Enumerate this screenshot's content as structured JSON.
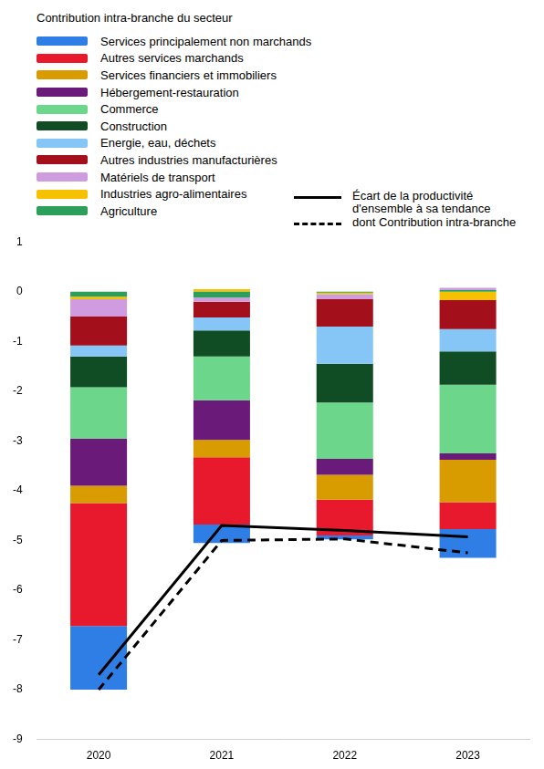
{
  "chart_data": {
    "type": "bar",
    "legend_title": "Contribution intra-branche du secteur",
    "categories": [
      "2020",
      "2021",
      "2022",
      "2023"
    ],
    "stacked": true,
    "grid": false,
    "legend": "top-left",
    "ylim": [
      -9,
      1
    ],
    "yticks": [
      -9,
      -8,
      -7,
      -6,
      -5,
      -4,
      -3,
      -2,
      -1,
      0,
      1
    ],
    "series": [
      {
        "name": "Agriculture",
        "type": "bar",
        "color": "#2ca05a",
        "values": [
          -0.1,
          -0.12,
          -0.02,
          0.03
        ]
      },
      {
        "name": "Industries agro-alimentaires",
        "type": "bar",
        "color": "#f6c200",
        "values": [
          -0.05,
          0.05,
          -0.03,
          -0.17
        ]
      },
      {
        "name": "Matériels de transport",
        "type": "bar",
        "color": "#cf9ddf",
        "values": [
          -0.35,
          -0.08,
          -0.1,
          0.05
        ]
      },
      {
        "name": "Autres industries manufacturières",
        "type": "bar",
        "color": "#a3101c",
        "values": [
          -0.58,
          -0.32,
          -0.55,
          -0.58
        ]
      },
      {
        "name": "Energie, eau, déchets",
        "type": "bar",
        "color": "#86c6f7",
        "values": [
          -0.22,
          -0.26,
          -0.75,
          -0.45
        ]
      },
      {
        "name": "Construction",
        "type": "bar",
        "color": "#114d24",
        "values": [
          -0.62,
          -0.52,
          -0.78,
          -0.67
        ]
      },
      {
        "name": "Commerce",
        "type": "bar",
        "color": "#6cd68a",
        "values": [
          -1.03,
          -0.88,
          -1.13,
          -1.38
        ]
      },
      {
        "name": "Hébergement-restauration",
        "type": "bar",
        "color": "#6a1b7a",
        "values": [
          -0.95,
          -0.8,
          -0.32,
          -0.13
        ]
      },
      {
        "name": "Services financiers et immobiliers",
        "type": "bar",
        "color": "#d89b00",
        "values": [
          -0.35,
          -0.35,
          -0.5,
          -0.85
        ]
      },
      {
        "name": "Autres services marchands",
        "type": "bar",
        "color": "#e8192c",
        "values": [
          -2.47,
          -1.35,
          -0.72,
          -0.54
        ]
      },
      {
        "name": "Services principalement non marchands",
        "type": "bar",
        "color": "#2e7ee6",
        "values": [
          -1.28,
          -0.37,
          -0.08,
          -0.58
        ]
      },
      {
        "name": "Écart de la productivité d'ensemble à sa tendance",
        "type": "line",
        "color": "#000000",
        "line_style": "solid",
        "values": [
          -7.7,
          -4.7,
          -4.8,
          -4.93
        ]
      },
      {
        "name": "dont Contribution intra-branche",
        "type": "line",
        "color": "#000000",
        "line_style": "dashed",
        "values": [
          -8.0,
          -5.0,
          -4.97,
          -5.25
        ]
      }
    ]
  }
}
